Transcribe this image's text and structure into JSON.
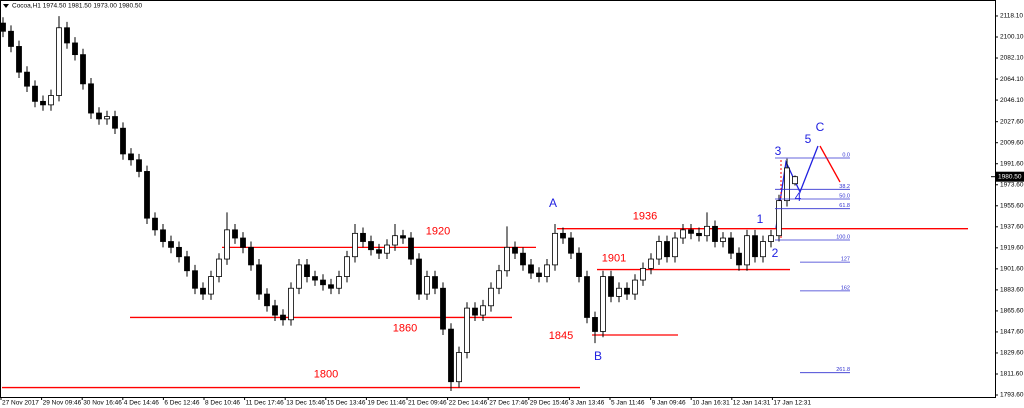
{
  "chart_data": {
    "type": "candlestick",
    "title": "Cocoa,H1  1974.50 1981.50 1973.00 1980.50",
    "color": "#000000",
    "level_color": "#ff0000",
    "wave_color": "#2020e0",
    "open": [
      2112,
      2105,
      2092,
      2070,
      2058,
      2045,
      2042,
      2050,
      2108,
      2095,
      2085,
      2060,
      2035,
      2030,
      2032,
      2022,
      2000,
      1995,
      1985,
      1945,
      1935,
      1925,
      1920,
      1912,
      1900,
      1885,
      1880,
      1895,
      1910,
      1935,
      1928,
      1920,
      1905,
      1880,
      1870,
      1862,
      1858,
      1885,
      1905,
      1895,
      1892,
      1888,
      1885,
      1895,
      1912,
      1932,
      1925,
      1918,
      1915,
      1922,
      1930,
      1928,
      1910,
      1880,
      1895,
      1885,
      1850,
      1805,
      1830,
      1868,
      1862,
      1870,
      1885,
      1900,
      1920,
      1915,
      1905,
      1898,
      1895,
      1905,
      1932,
      1928,
      1915,
      1895,
      1860,
      1848,
      1895,
      1878,
      1885,
      1880,
      1892,
      1902,
      1910,
      1925,
      1912,
      1928,
      1935,
      1932,
      1930,
      1938,
      1925,
      1928,
      1915,
      1905,
      1930,
      1912,
      1925,
      1930,
      1960,
      1974.5
    ],
    "high": [
      2117,
      2110,
      2097,
      2075,
      2063,
      2050,
      2055,
      2118,
      2113,
      2100,
      2090,
      2065,
      2040,
      2037,
      2037,
      2027,
      2005,
      2000,
      1990,
      1950,
      1940,
      1930,
      1925,
      1917,
      1905,
      1890,
      1900,
      1915,
      1950,
      1940,
      1933,
      1925,
      1910,
      1885,
      1875,
      1867,
      1890,
      1910,
      1910,
      1900,
      1897,
      1893,
      1900,
      1917,
      1940,
      1937,
      1930,
      1923,
      1927,
      1940,
      1935,
      1933,
      1915,
      1900,
      1900,
      1890,
      1855,
      1835,
      1873,
      1873,
      1875,
      1890,
      1905,
      1938,
      1925,
      1920,
      1910,
      1903,
      1910,
      1940,
      1937,
      1933,
      1920,
      1900,
      1865,
      1900,
      1900,
      1890,
      1890,
      1897,
      1907,
      1915,
      1930,
      1930,
      1933,
      1940,
      1940,
      1937,
      1950,
      1943,
      1933,
      1933,
      1920,
      1935,
      1935,
      1930,
      1935,
      1965,
      1996,
      1981.5
    ],
    "low": [
      2100,
      2087,
      2065,
      2053,
      2040,
      2037,
      2037,
      2045,
      2090,
      2080,
      2055,
      2030,
      2025,
      2025,
      2017,
      1995,
      1990,
      1980,
      1940,
      1930,
      1920,
      1915,
      1907,
      1895,
      1880,
      1875,
      1875,
      1890,
      1905,
      1923,
      1915,
      1900,
      1875,
      1865,
      1857,
      1853,
      1853,
      1880,
      1890,
      1887,
      1883,
      1880,
      1880,
      1890,
      1907,
      1920,
      1913,
      1910,
      1910,
      1917,
      1923,
      1905,
      1875,
      1875,
      1880,
      1845,
      1797,
      1800,
      1825,
      1857,
      1857,
      1865,
      1880,
      1895,
      1910,
      1900,
      1893,
      1890,
      1890,
      1900,
      1923,
      1910,
      1890,
      1855,
      1838,
      1843,
      1873,
      1873,
      1875,
      1875,
      1887,
      1897,
      1905,
      1907,
      1907,
      1923,
      1927,
      1925,
      1925,
      1920,
      1920,
      1910,
      1900,
      1900,
      1907,
      1907,
      1920,
      1925,
      1955,
      1973
    ],
    "close": [
      2105,
      2092,
      2070,
      2058,
      2045,
      2042,
      2050,
      2108,
      2095,
      2085,
      2060,
      2035,
      2030,
      2032,
      2022,
      2000,
      1995,
      1985,
      1945,
      1935,
      1925,
      1920,
      1912,
      1900,
      1885,
      1880,
      1895,
      1910,
      1935,
      1928,
      1920,
      1905,
      1880,
      1870,
      1862,
      1858,
      1885,
      1905,
      1895,
      1892,
      1888,
      1885,
      1895,
      1912,
      1932,
      1925,
      1918,
      1915,
      1922,
      1930,
      1928,
      1910,
      1880,
      1895,
      1885,
      1850,
      1805,
      1830,
      1868,
      1862,
      1870,
      1885,
      1900,
      1920,
      1915,
      1905,
      1898,
      1895,
      1905,
      1932,
      1928,
      1915,
      1895,
      1860,
      1848,
      1895,
      1878,
      1885,
      1880,
      1892,
      1902,
      1910,
      1925,
      1912,
      1928,
      1935,
      1932,
      1930,
      1938,
      1925,
      1928,
      1915,
      1905,
      1930,
      1912,
      1925,
      1930,
      1960,
      1988,
      1980.5
    ],
    "ylim": [
      1791.9,
      2129.2
    ],
    "yticks": [
      {
        "value": 2118.1,
        "label": "2118.10"
      },
      {
        "value": 2100.1,
        "label": "2100.10"
      },
      {
        "value": 2082.1,
        "label": "2082.10"
      },
      {
        "value": 2064.1,
        "label": "2064.10"
      },
      {
        "value": 2046.1,
        "label": "2046.10"
      },
      {
        "value": 2027.6,
        "label": "2027.60"
      },
      {
        "value": 2009.6,
        "label": "2009.60"
      },
      {
        "value": 1991.6,
        "label": "1991.60"
      },
      {
        "value": 1973.6,
        "label": "1973.60"
      },
      {
        "value": 1955.6,
        "label": "1955.60"
      },
      {
        "value": 1937.6,
        "label": "1937.60"
      },
      {
        "value": 1919.6,
        "label": "1919.60"
      },
      {
        "value": 1901.6,
        "label": "1901.60"
      },
      {
        "value": 1883.6,
        "label": "1883.60"
      },
      {
        "value": 1865.6,
        "label": "1865.60"
      },
      {
        "value": 1847.6,
        "label": "1847.60"
      },
      {
        "value": 1829.6,
        "label": "1829.60"
      },
      {
        "value": 1811.6,
        "label": "1811.60"
      },
      {
        "value": 1793.6,
        "label": "1793.60"
      }
    ],
    "last_price": {
      "value": 1980.5,
      "label": "1980.50"
    },
    "x_labels": [
      "27 Nov 2017",
      "29 Nov 09:46",
      "30 Nov 16:46",
      "4 Dec 14:46",
      "6 Dec 12:46",
      "8 Dec 10:46",
      "11 Dec 17:46",
      "13 Dec 15:46",
      "15 Dec 13:46",
      "19 Dec 11:46",
      "21 Dec 09:46",
      "22 Dec 14:46",
      "27 Dec 17:46",
      "29 Dec 15:46",
      "3 Jan 13:46",
      "5 Jan 11:46",
      "9 Jan 09:46",
      "10 Jan 16:31",
      "12 Jan 14:31",
      "17 Jan 12:31"
    ],
    "levels": [
      1920,
      1860,
      1800,
      1936,
      1901,
      1845
    ],
    "waves": [
      "A",
      "B",
      "1",
      "2",
      "3",
      "4",
      "5",
      "C"
    ],
    "fib_levels": [
      {
        "value": 0,
        "label": "0.0"
      },
      {
        "value": 38.2,
        "label": "38.2"
      },
      {
        "value": 50,
        "label": "50.0"
      },
      {
        "value": 61.8,
        "label": "61.8"
      },
      {
        "value": 100,
        "label": "100.0"
      },
      {
        "value": 127,
        "label": "127"
      },
      {
        "value": 162,
        "label": "162"
      },
      {
        "value": 261.8,
        "label": "261.8"
      }
    ]
  }
}
